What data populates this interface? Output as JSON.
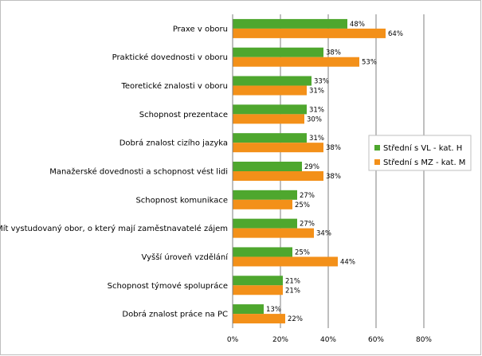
{
  "chart_data": {
    "type": "bar",
    "orientation": "horizontal",
    "title": "",
    "xlabel": "",
    "ylabel": "",
    "categories": [
      "Praxe v oboru",
      "Praktické dovednosti v oboru",
      "Teoretické znalosti v oboru",
      "Schopnost prezentace",
      "Dobrá znalost cizího jazyka",
      "Manažerské dovednosti a schopnost vést lidi",
      "Schopnost komunikace",
      "Mít vystudovaný obor, o který mají zaměstnavatelé zájem",
      "Vyšší úroveň vzdělání",
      "Schopnost týmové spolupráce",
      "Dobrá znalost práce na PC"
    ],
    "series": [
      {
        "name": "Střední s VL - kat. H",
        "color": "#4ea72e",
        "values": [
          48,
          38,
          33,
          31,
          31,
          29,
          27,
          27,
          25,
          21,
          13
        ],
        "labels": [
          "48%",
          "38%",
          "33%",
          "31%",
          "31%",
          "29%",
          "27%",
          "27%",
          "25%",
          "21%",
          "13%"
        ]
      },
      {
        "name": "Střední s MZ - kat. M",
        "color": "#f39019",
        "values": [
          64,
          53,
          31,
          30,
          38,
          38,
          25,
          34,
          44,
          21,
          22
        ],
        "labels": [
          "64%",
          "53%",
          "31%",
          "30%",
          "38%",
          "38%",
          "25%",
          "34%",
          "44%",
          "21%",
          "22%"
        ]
      }
    ],
    "xlim": [
      0,
      80
    ],
    "xticks": [
      0,
      20,
      40,
      60,
      80
    ],
    "xtick_labels": [
      "0%",
      "20%",
      "40%",
      "60%",
      "80%"
    ],
    "grid": true,
    "legend_position": "right"
  }
}
